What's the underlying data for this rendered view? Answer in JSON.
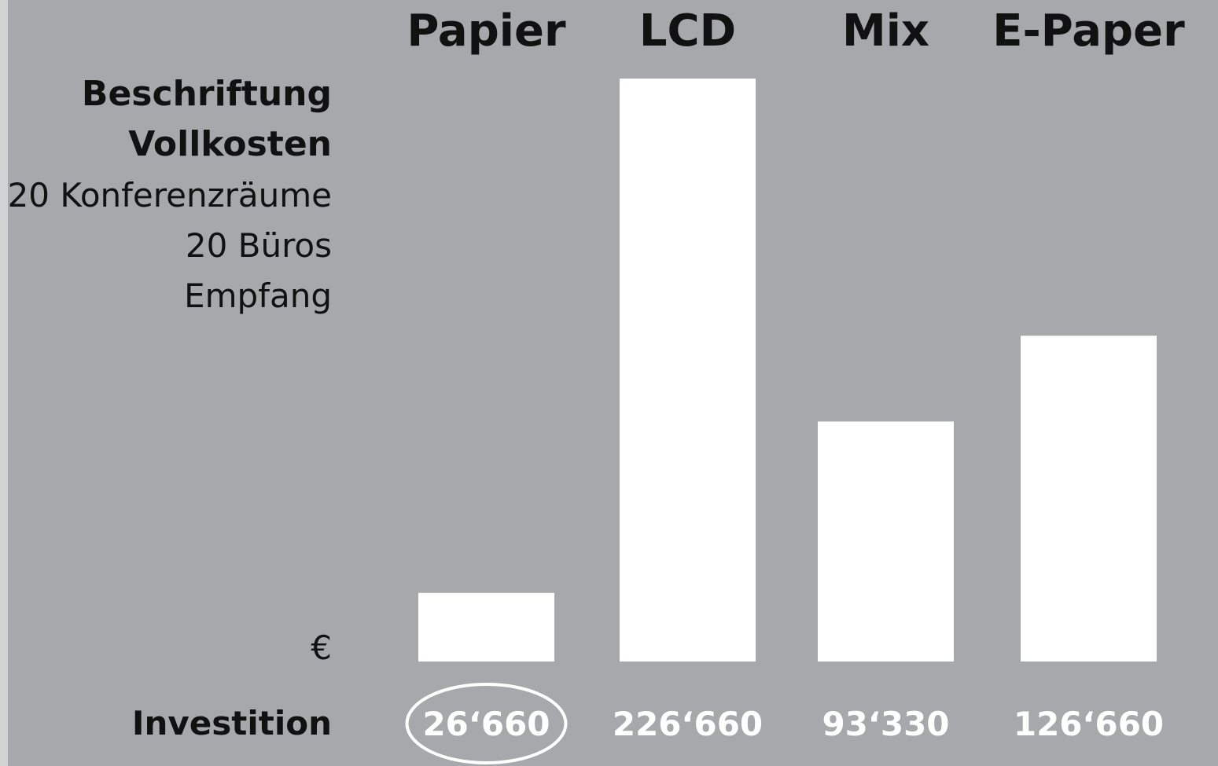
{
  "chart_data": {
    "type": "bar",
    "categories": [
      "Papier",
      "LCD",
      "Mix",
      "E-Paper"
    ],
    "values": [
      26660,
      226660,
      93330,
      126660
    ],
    "value_labels": [
      "26‘660",
      "226‘660",
      "93‘330",
      "126‘660"
    ],
    "highlighted_category": "Papier",
    "subtitle_lines": [
      "Beschriftung",
      "Vollkosten"
    ],
    "description_lines": [
      "20 Konferenzräume",
      "20 Büros",
      "Empfang"
    ],
    "unit": "€",
    "value_row_label": "Investition",
    "grid": false,
    "legend": "none"
  },
  "colors": {
    "background": "#a7a8ab",
    "bars": "#ffffff",
    "text_dark": "#111111",
    "text_light": "#ffffff"
  }
}
